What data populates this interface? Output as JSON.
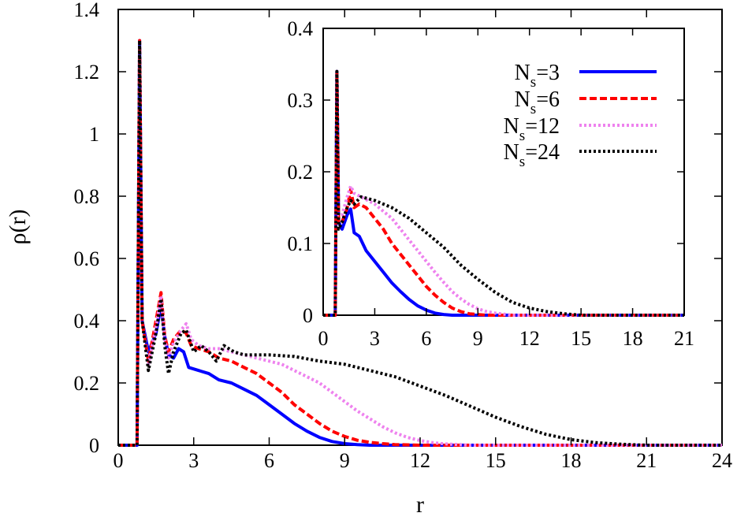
{
  "chart_data": [
    {
      "type": "line",
      "panel": "main",
      "title": "",
      "xlabel": "r",
      "ylabel": "ρ(r)",
      "xlim": [
        0,
        24
      ],
      "ylim": [
        0,
        1.4
      ],
      "xticks": [
        "0",
        "3",
        "6",
        "9",
        "12",
        "15",
        "18",
        "21",
        "24"
      ],
      "yticks": [
        "0",
        "0.2",
        "0.4",
        "0.6",
        "0.8",
        "1",
        "1.2",
        "1.4"
      ],
      "grid": false,
      "series": [
        {
          "name": "N_s=3",
          "color": "#0000ff",
          "style": "solid",
          "points": [
            [
              0,
              0
            ],
            [
              0.5,
              0
            ],
            [
              0.75,
              0
            ],
            [
              0.85,
              1.3
            ],
            [
              0.95,
              0.4
            ],
            [
              1.2,
              0.3
            ],
            [
              1.5,
              0.36
            ],
            [
              1.7,
              0.45
            ],
            [
              1.85,
              0.35
            ],
            [
              2.0,
              0.29
            ],
            [
              2.2,
              0.28
            ],
            [
              2.4,
              0.31
            ],
            [
              2.6,
              0.3
            ],
            [
              2.8,
              0.25
            ],
            [
              3.2,
              0.24
            ],
            [
              3.6,
              0.23
            ],
            [
              4.0,
              0.21
            ],
            [
              4.5,
              0.2
            ],
            [
              5.0,
              0.18
            ],
            [
              5.5,
              0.16
            ],
            [
              6.0,
              0.13
            ],
            [
              6.5,
              0.1
            ],
            [
              7.0,
              0.07
            ],
            [
              7.5,
              0.045
            ],
            [
              8.0,
              0.025
            ],
            [
              8.5,
              0.012
            ],
            [
              9.0,
              0.005
            ],
            [
              9.5,
              0.002
            ],
            [
              10.0,
              0
            ],
            [
              24.0,
              0
            ]
          ]
        },
        {
          "name": "N_s=6",
          "color": "#ff0000",
          "style": "dashed",
          "points": [
            [
              0,
              0
            ],
            [
              0.5,
              0
            ],
            [
              0.75,
              0
            ],
            [
              0.85,
              1.3
            ],
            [
              0.95,
              0.4
            ],
            [
              1.2,
              0.27
            ],
            [
              1.5,
              0.4
            ],
            [
              1.7,
              0.49
            ],
            [
              1.85,
              0.35
            ],
            [
              2.0,
              0.3
            ],
            [
              2.2,
              0.34
            ],
            [
              2.5,
              0.37
            ],
            [
              2.7,
              0.36
            ],
            [
              2.9,
              0.32
            ],
            [
              3.2,
              0.31
            ],
            [
              3.6,
              0.3
            ],
            [
              4.0,
              0.28
            ],
            [
              4.5,
              0.27
            ],
            [
              5.0,
              0.25
            ],
            [
              5.5,
              0.23
            ],
            [
              6.0,
              0.2
            ],
            [
              6.5,
              0.17
            ],
            [
              7.0,
              0.13
            ],
            [
              7.5,
              0.1
            ],
            [
              8.0,
              0.07
            ],
            [
              8.5,
              0.045
            ],
            [
              9.0,
              0.028
            ],
            [
              9.5,
              0.016
            ],
            [
              10.0,
              0.009
            ],
            [
              10.5,
              0.005
            ],
            [
              11.0,
              0.002
            ],
            [
              12.0,
              0
            ],
            [
              24.0,
              0
            ]
          ]
        },
        {
          "name": "N_s=12",
          "color": "#ee82ee",
          "style": "dotted",
          "points": [
            [
              0,
              0
            ],
            [
              0.5,
              0
            ],
            [
              0.75,
              0
            ],
            [
              0.85,
              1.3
            ],
            [
              0.95,
              0.4
            ],
            [
              1.2,
              0.26
            ],
            [
              1.5,
              0.38
            ],
            [
              1.7,
              0.48
            ],
            [
              1.85,
              0.34
            ],
            [
              2.0,
              0.28
            ],
            [
              2.2,
              0.33
            ],
            [
              2.5,
              0.37
            ],
            [
              2.7,
              0.39
            ],
            [
              2.9,
              0.34
            ],
            [
              3.2,
              0.32
            ],
            [
              3.6,
              0.31
            ],
            [
              4.0,
              0.31
            ],
            [
              4.5,
              0.3
            ],
            [
              5.0,
              0.29
            ],
            [
              5.5,
              0.28
            ],
            [
              6.0,
              0.27
            ],
            [
              6.5,
              0.26
            ],
            [
              7.0,
              0.24
            ],
            [
              7.5,
              0.22
            ],
            [
              8.0,
              0.2
            ],
            [
              8.5,
              0.17
            ],
            [
              9.0,
              0.14
            ],
            [
              9.5,
              0.11
            ],
            [
              10.0,
              0.085
            ],
            [
              10.5,
              0.06
            ],
            [
              11.0,
              0.04
            ],
            [
              11.5,
              0.025
            ],
            [
              12.0,
              0.015
            ],
            [
              12.5,
              0.008
            ],
            [
              13.0,
              0.004
            ],
            [
              14.0,
              0
            ],
            [
              24.0,
              0
            ]
          ]
        },
        {
          "name": "N_s=24",
          "color": "#000000",
          "style": "dotted",
          "points": [
            [
              0,
              0
            ],
            [
              0.5,
              0
            ],
            [
              0.75,
              0
            ],
            [
              0.85,
              1.3
            ],
            [
              0.95,
              0.4
            ],
            [
              1.2,
              0.24
            ],
            [
              1.5,
              0.36
            ],
            [
              1.7,
              0.47
            ],
            [
              1.85,
              0.32
            ],
            [
              2.0,
              0.23
            ],
            [
              2.2,
              0.3
            ],
            [
              2.5,
              0.36
            ],
            [
              2.7,
              0.37
            ],
            [
              3.0,
              0.3
            ],
            [
              3.3,
              0.32
            ],
            [
              3.6,
              0.3
            ],
            [
              3.9,
              0.27
            ],
            [
              4.2,
              0.32
            ],
            [
              4.6,
              0.3
            ],
            [
              5.0,
              0.29
            ],
            [
              5.5,
              0.29
            ],
            [
              6.0,
              0.29
            ],
            [
              7.0,
              0.285
            ],
            [
              8.0,
              0.27
            ],
            [
              9.0,
              0.26
            ],
            [
              10.0,
              0.24
            ],
            [
              11.0,
              0.22
            ],
            [
              12.0,
              0.19
            ],
            [
              13.0,
              0.16
            ],
            [
              14.0,
              0.125
            ],
            [
              15.0,
              0.09
            ],
            [
              16.0,
              0.06
            ],
            [
              17.0,
              0.035
            ],
            [
              18.0,
              0.018
            ],
            [
              19.0,
              0.008
            ],
            [
              20.0,
              0.003
            ],
            [
              21.0,
              0
            ],
            [
              24.0,
              0
            ]
          ]
        }
      ]
    },
    {
      "type": "line",
      "panel": "inset",
      "title": "",
      "xlabel": "",
      "ylabel": "",
      "xlim": [
        0,
        21
      ],
      "ylim": [
        0,
        0.4
      ],
      "xticks": [
        "0",
        "3",
        "6",
        "9",
        "12",
        "15",
        "18",
        "21"
      ],
      "yticks": [
        "0",
        "0.1",
        "0.2",
        "0.3",
        "0.4"
      ],
      "grid": false,
      "legend_position": "top-right",
      "series": [
        {
          "name": "N_s=3",
          "color": "#0000ff",
          "style": "solid",
          "points": [
            [
              0,
              0
            ],
            [
              0.5,
              0
            ],
            [
              0.7,
              0
            ],
            [
              0.8,
              0.34
            ],
            [
              0.9,
              0.13
            ],
            [
              1.1,
              0.12
            ],
            [
              1.4,
              0.14
            ],
            [
              1.6,
              0.148
            ],
            [
              1.8,
              0.115
            ],
            [
              2.1,
              0.11
            ],
            [
              2.5,
              0.09
            ],
            [
              3.0,
              0.075
            ],
            [
              3.5,
              0.06
            ],
            [
              4.0,
              0.045
            ],
            [
              4.5,
              0.033
            ],
            [
              5.0,
              0.022
            ],
            [
              5.5,
              0.013
            ],
            [
              6.0,
              0.007
            ],
            [
              6.5,
              0.003
            ],
            [
              7.0,
              0.001
            ],
            [
              7.5,
              0
            ],
            [
              21.0,
              0
            ]
          ]
        },
        {
          "name": "N_s=6",
          "color": "#ff0000",
          "style": "dashed",
          "points": [
            [
              0,
              0
            ],
            [
              0.5,
              0
            ],
            [
              0.7,
              0
            ],
            [
              0.8,
              0.34
            ],
            [
              0.9,
              0.13
            ],
            [
              1.1,
              0.13
            ],
            [
              1.4,
              0.15
            ],
            [
              1.6,
              0.175
            ],
            [
              1.8,
              0.15
            ],
            [
              2.1,
              0.155
            ],
            [
              2.5,
              0.15
            ],
            [
              3.0,
              0.135
            ],
            [
              3.5,
              0.12
            ],
            [
              4.0,
              0.1
            ],
            [
              4.5,
              0.085
            ],
            [
              5.0,
              0.07
            ],
            [
              5.5,
              0.055
            ],
            [
              6.0,
              0.04
            ],
            [
              6.5,
              0.028
            ],
            [
              7.0,
              0.018
            ],
            [
              7.5,
              0.01
            ],
            [
              8.0,
              0.005
            ],
            [
              8.5,
              0.002
            ],
            [
              9.5,
              0
            ],
            [
              21.0,
              0
            ]
          ]
        },
        {
          "name": "N_s=12",
          "color": "#ee82ee",
          "style": "dotted",
          "points": [
            [
              0,
              0
            ],
            [
              0.5,
              0
            ],
            [
              0.7,
              0
            ],
            [
              0.8,
              0.34
            ],
            [
              0.9,
              0.14
            ],
            [
              1.1,
              0.14
            ],
            [
              1.4,
              0.165
            ],
            [
              1.6,
              0.18
            ],
            [
              1.8,
              0.17
            ],
            [
              2.2,
              0.165
            ],
            [
              3.0,
              0.155
            ],
            [
              3.5,
              0.145
            ],
            [
              4.0,
              0.135
            ],
            [
              4.5,
              0.12
            ],
            [
              5.0,
              0.105
            ],
            [
              5.5,
              0.09
            ],
            [
              6.0,
              0.075
            ],
            [
              6.5,
              0.06
            ],
            [
              7.0,
              0.046
            ],
            [
              7.5,
              0.033
            ],
            [
              8.0,
              0.023
            ],
            [
              8.5,
              0.015
            ],
            [
              9.0,
              0.009
            ],
            [
              9.5,
              0.005
            ],
            [
              10.0,
              0.003
            ],
            [
              11.0,
              0
            ],
            [
              21.0,
              0
            ]
          ]
        },
        {
          "name": "N_s=24",
          "color": "#000000",
          "style": "dotted",
          "points": [
            [
              0,
              0
            ],
            [
              0.5,
              0
            ],
            [
              0.7,
              0
            ],
            [
              0.8,
              0.34
            ],
            [
              0.9,
              0.12
            ],
            [
              1.1,
              0.13
            ],
            [
              1.4,
              0.15
            ],
            [
              1.6,
              0.16
            ],
            [
              1.8,
              0.155
            ],
            [
              2.2,
              0.165
            ],
            [
              3.0,
              0.16
            ],
            [
              4.0,
              0.15
            ],
            [
              5.0,
              0.135
            ],
            [
              6.0,
              0.115
            ],
            [
              7.0,
              0.095
            ],
            [
              8.0,
              0.07
            ],
            [
              9.0,
              0.05
            ],
            [
              10.0,
              0.032
            ],
            [
              11.0,
              0.018
            ],
            [
              12.0,
              0.01
            ],
            [
              13.0,
              0.005
            ],
            [
              14.0,
              0.002
            ],
            [
              15.0,
              0
            ],
            [
              21.0,
              0
            ]
          ]
        }
      ]
    }
  ],
  "legend": [
    {
      "base": "N",
      "sub": "s",
      "value": "=3",
      "color": "#0000ff",
      "style": "solid"
    },
    {
      "base": "N",
      "sub": "s",
      "value": "=6",
      "color": "#ff0000",
      "style": "dashed"
    },
    {
      "base": "N",
      "sub": "s",
      "value": "=12",
      "color": "#ee82ee",
      "style": "dotted"
    },
    {
      "base": "N",
      "sub": "s",
      "value": "=24",
      "color": "#000000",
      "style": "dotted"
    }
  ]
}
